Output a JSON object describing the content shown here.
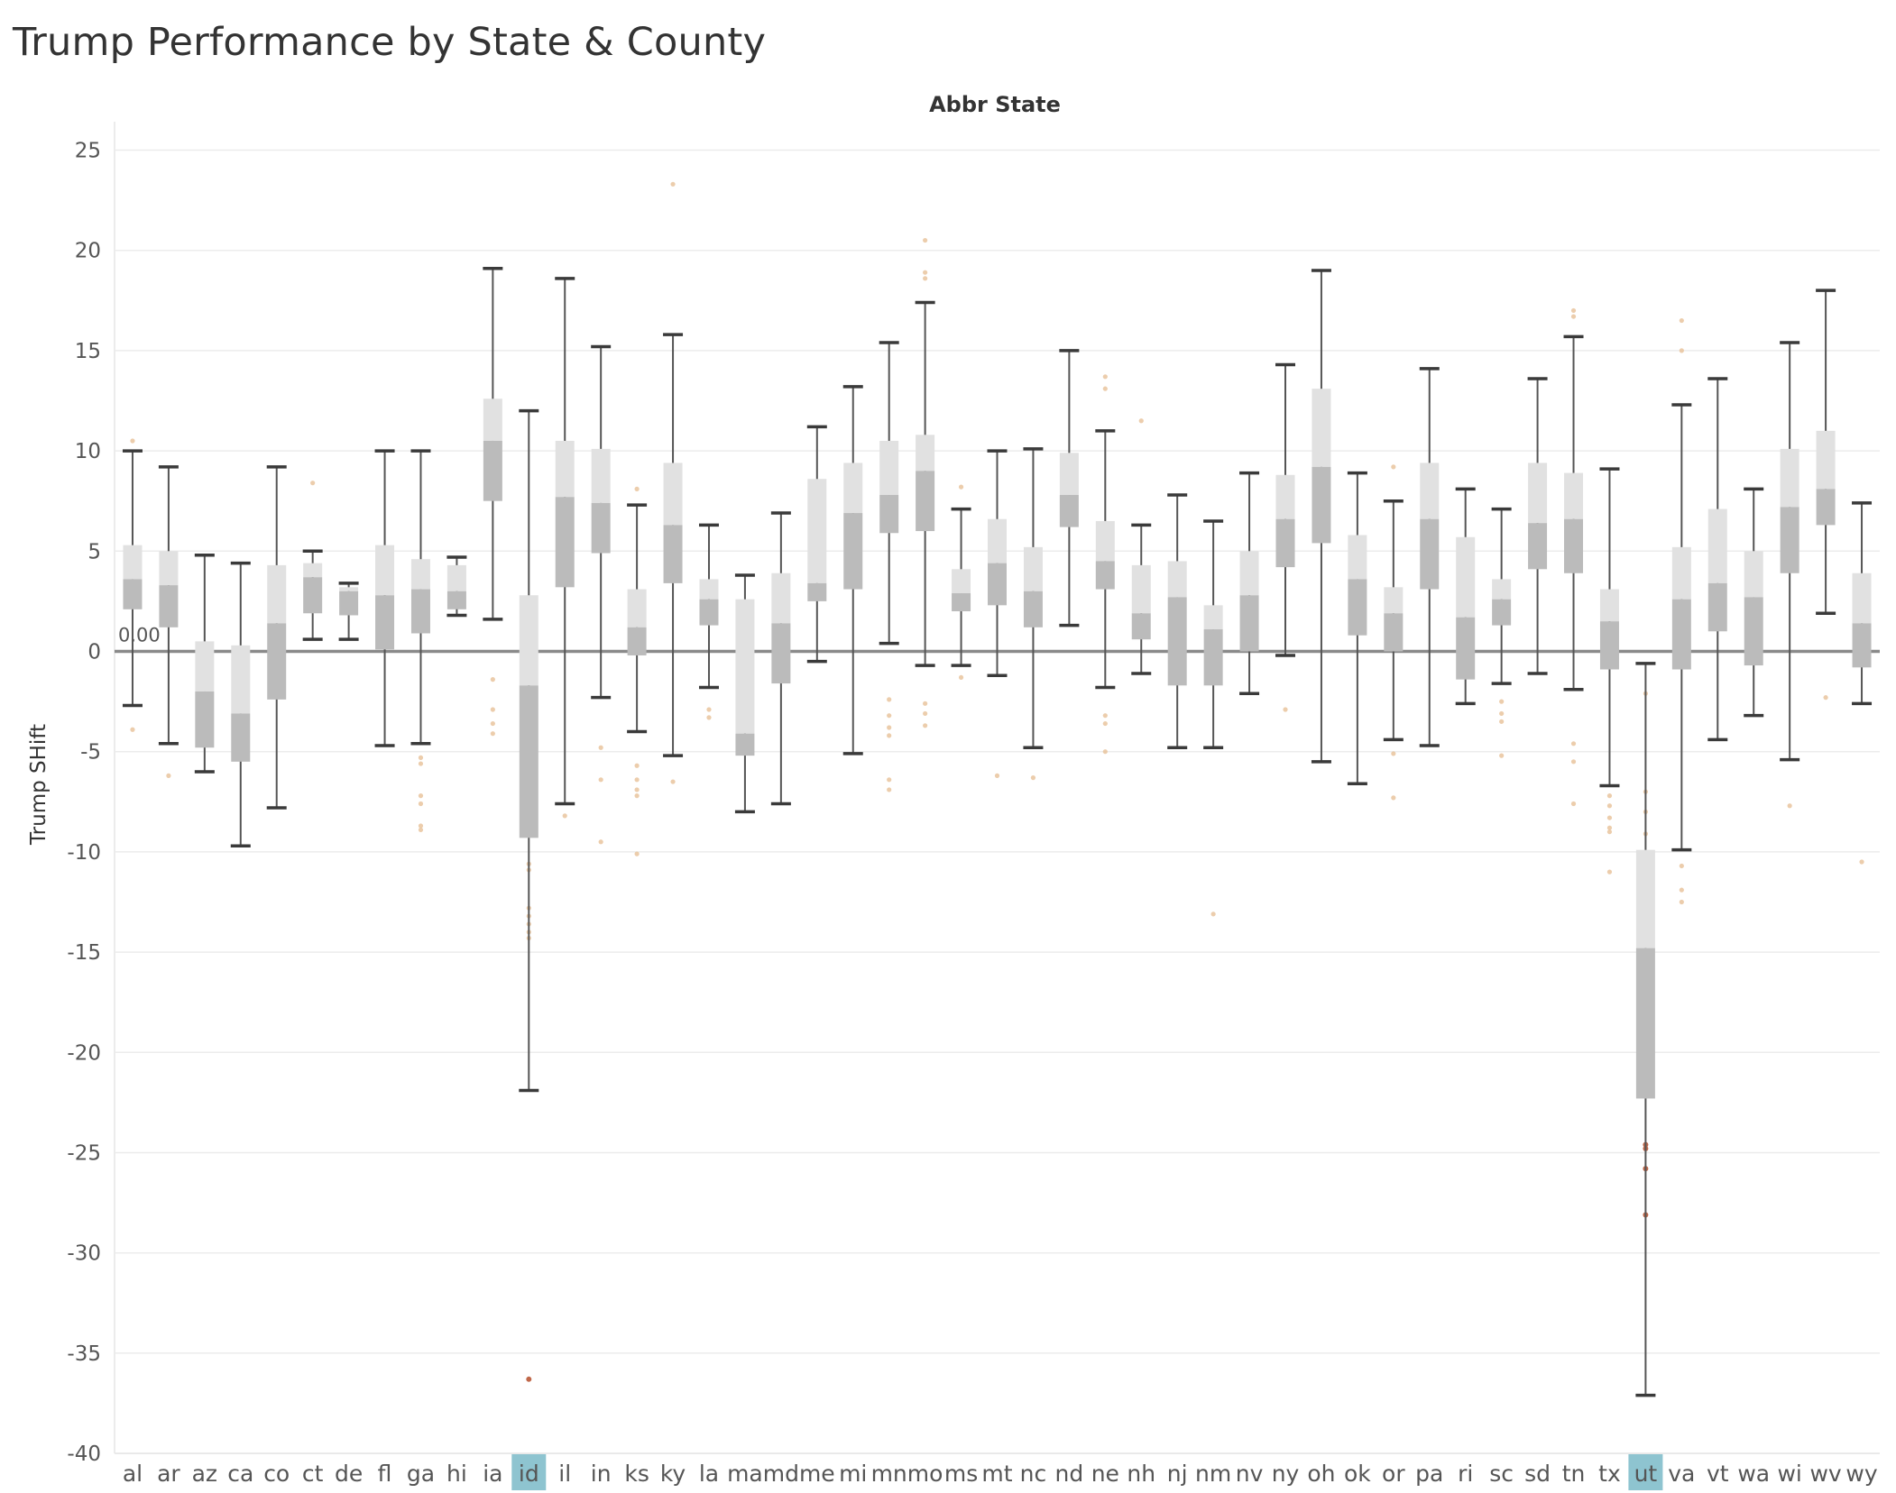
{
  "page": {
    "title": "Trump Performance by State & County"
  },
  "chart_data": {
    "type": "box",
    "title": "Trump Performance by State & County",
    "column_header": "Abbr State",
    "ylabel": "Trump SHift",
    "ylim": [
      -41,
      25
    ],
    "yticks": [
      25,
      20,
      15,
      10,
      5,
      0,
      -5,
      -10,
      -15,
      -20,
      -25,
      -30,
      -35,
      -40
    ],
    "reference_line": {
      "value": 0,
      "label": "0.00"
    },
    "highlighted": [
      "id",
      "ut"
    ],
    "colors": {
      "box_upper": "#e1e1e1",
      "box_lower": "#bbbbbb",
      "whisker": "#555555",
      "point": "#e9c49d",
      "point_dark": "#c0684a",
      "highlight": "#8ec4d0",
      "grid": "#ececec"
    },
    "states": [
      {
        "abbr": "al",
        "min": -2.7,
        "q1": 2.1,
        "median": 3.6,
        "q3": 5.3,
        "max": 10.0,
        "outliers": [
          10.5,
          -3.9
        ]
      },
      {
        "abbr": "ar",
        "min": -4.6,
        "q1": 1.2,
        "median": 3.3,
        "q3": 5.0,
        "max": 9.2,
        "outliers": [
          -6.2
        ]
      },
      {
        "abbr": "az",
        "min": -6.0,
        "q1": -4.8,
        "median": -2.0,
        "q3": 0.5,
        "max": 4.8,
        "outliers": []
      },
      {
        "abbr": "ca",
        "min": -9.7,
        "q1": -5.5,
        "median": -3.1,
        "q3": 0.3,
        "max": 4.4,
        "outliers": []
      },
      {
        "abbr": "co",
        "min": -7.8,
        "q1": -2.4,
        "median": 1.4,
        "q3": 4.3,
        "max": 9.2,
        "outliers": []
      },
      {
        "abbr": "ct",
        "min": 0.6,
        "q1": 1.9,
        "median": 3.7,
        "q3": 4.4,
        "max": 5.0,
        "outliers": [
          8.4
        ]
      },
      {
        "abbr": "de",
        "min": 0.6,
        "q1": 1.8,
        "median": 3.0,
        "q3": 3.2,
        "max": 3.4,
        "outliers": []
      },
      {
        "abbr": "fl",
        "min": -4.7,
        "q1": 0.1,
        "median": 2.8,
        "q3": 5.3,
        "max": 10.0,
        "outliers": []
      },
      {
        "abbr": "ga",
        "min": -4.6,
        "q1": 0.9,
        "median": 3.1,
        "q3": 4.6,
        "max": 10.0,
        "outliers": [
          -5.3,
          -5.6,
          -7.2,
          -7.6,
          -8.7,
          -8.9
        ]
      },
      {
        "abbr": "hi",
        "min": 1.8,
        "q1": 2.1,
        "median": 3.0,
        "q3": 4.3,
        "max": 4.7,
        "outliers": []
      },
      {
        "abbr": "ia",
        "min": 1.6,
        "q1": 7.5,
        "median": 10.5,
        "q3": 12.6,
        "max": 19.1,
        "outliers": [
          -1.4,
          -2.9,
          -3.6,
          -4.1
        ]
      },
      {
        "abbr": "id",
        "min": -21.9,
        "q1": -9.3,
        "median": -1.7,
        "q3": 2.8,
        "max": 12.0,
        "outliers": [
          -10.6,
          -10.9,
          -12.8,
          -13.2,
          -13.6,
          -14.0,
          -14.3
        ],
        "extreme_outliers": [
          -36.3
        ]
      },
      {
        "abbr": "il",
        "min": -7.6,
        "q1": 3.2,
        "median": 7.7,
        "q3": 10.5,
        "max": 18.6,
        "outliers": [
          -8.2
        ]
      },
      {
        "abbr": "in",
        "min": -2.3,
        "q1": 4.9,
        "median": 7.4,
        "q3": 10.1,
        "max": 15.2,
        "outliers": [
          -4.8,
          -6.4,
          -9.5
        ]
      },
      {
        "abbr": "ks",
        "min": -4.0,
        "q1": -0.2,
        "median": 1.2,
        "q3": 3.1,
        "max": 7.3,
        "outliers": [
          8.1,
          -5.7,
          -6.4,
          -6.9,
          -7.2,
          -10.1
        ]
      },
      {
        "abbr": "ky",
        "min": -5.2,
        "q1": 3.4,
        "median": 6.3,
        "q3": 9.4,
        "max": 15.8,
        "outliers": [
          23.3,
          -6.5
        ]
      },
      {
        "abbr": "la",
        "min": -1.8,
        "q1": 1.3,
        "median": 2.6,
        "q3": 3.6,
        "max": 6.3,
        "outliers": [
          -2.9,
          -3.3
        ]
      },
      {
        "abbr": "ma",
        "min": -8.0,
        "q1": -5.2,
        "median": -4.1,
        "q3": 2.6,
        "max": 3.8,
        "outliers": []
      },
      {
        "abbr": "md",
        "min": -7.6,
        "q1": -1.6,
        "median": 1.4,
        "q3": 3.9,
        "max": 6.9,
        "outliers": []
      },
      {
        "abbr": "me",
        "min": -0.5,
        "q1": 2.5,
        "median": 3.4,
        "q3": 8.6,
        "max": 11.2,
        "outliers": []
      },
      {
        "abbr": "mi",
        "min": -5.1,
        "q1": 3.1,
        "median": 6.9,
        "q3": 9.4,
        "max": 13.2,
        "outliers": []
      },
      {
        "abbr": "mn",
        "min": 0.4,
        "q1": 5.9,
        "median": 7.8,
        "q3": 10.5,
        "max": 15.4,
        "outliers": [
          -2.4,
          -3.2,
          -3.8,
          -4.2,
          -6.4,
          -6.9
        ]
      },
      {
        "abbr": "mo",
        "min": -0.7,
        "q1": 6.0,
        "median": 9.0,
        "q3": 10.8,
        "max": 17.4,
        "outliers": [
          18.6,
          18.9,
          20.5,
          -2.6,
          -3.1,
          -3.7
        ]
      },
      {
        "abbr": "ms",
        "min": -0.7,
        "q1": 2.0,
        "median": 2.9,
        "q3": 4.1,
        "max": 7.1,
        "outliers": [
          8.2,
          -1.3
        ]
      },
      {
        "abbr": "mt",
        "min": -1.2,
        "q1": 2.3,
        "median": 4.4,
        "q3": 6.6,
        "max": 10.0,
        "outliers": [
          -6.2
        ]
      },
      {
        "abbr": "nc",
        "min": -4.8,
        "q1": 1.2,
        "median": 3.0,
        "q3": 5.2,
        "max": 10.1,
        "outliers": [
          -6.3
        ]
      },
      {
        "abbr": "nd",
        "min": 1.3,
        "q1": 6.2,
        "median": 7.8,
        "q3": 9.9,
        "max": 15.0,
        "outliers": []
      },
      {
        "abbr": "ne",
        "min": -1.8,
        "q1": 3.1,
        "median": 4.5,
        "q3": 6.5,
        "max": 11.0,
        "outliers": [
          13.1,
          13.7,
          -3.2,
          -3.6,
          -5.0
        ]
      },
      {
        "abbr": "nh",
        "min": -1.1,
        "q1": 0.6,
        "median": 1.9,
        "q3": 4.3,
        "max": 6.3,
        "outliers": [
          11.5
        ]
      },
      {
        "abbr": "nj",
        "min": -4.8,
        "q1": -1.7,
        "median": 2.7,
        "q3": 4.5,
        "max": 7.8,
        "outliers": []
      },
      {
        "abbr": "nm",
        "min": -4.8,
        "q1": -1.7,
        "median": 1.1,
        "q3": 2.3,
        "max": 6.5,
        "outliers": [
          -13.1
        ]
      },
      {
        "abbr": "nv",
        "min": -2.1,
        "q1": 0.0,
        "median": 2.8,
        "q3": 5.0,
        "max": 8.9,
        "outliers": []
      },
      {
        "abbr": "ny",
        "min": -0.2,
        "q1": 4.2,
        "median": 6.6,
        "q3": 8.8,
        "max": 14.3,
        "outliers": [
          -2.9
        ]
      },
      {
        "abbr": "oh",
        "min": -5.5,
        "q1": 5.4,
        "median": 9.2,
        "q3": 13.1,
        "max": 19.0,
        "outliers": []
      },
      {
        "abbr": "ok",
        "min": -6.6,
        "q1": 0.8,
        "median": 3.6,
        "q3": 5.8,
        "max": 8.9,
        "outliers": []
      },
      {
        "abbr": "or",
        "min": -4.4,
        "q1": 0.0,
        "median": 1.9,
        "q3": 3.2,
        "max": 7.5,
        "outliers": [
          9.2,
          -5.1,
          -7.3
        ]
      },
      {
        "abbr": "pa",
        "min": -4.7,
        "q1": 3.1,
        "median": 6.6,
        "q3": 9.4,
        "max": 14.1,
        "outliers": []
      },
      {
        "abbr": "ri",
        "min": -2.6,
        "q1": -1.4,
        "median": 1.7,
        "q3": 5.7,
        "max": 8.1,
        "outliers": []
      },
      {
        "abbr": "sc",
        "min": -1.6,
        "q1": 1.3,
        "median": 2.6,
        "q3": 3.6,
        "max": 7.1,
        "outliers": [
          -2.5,
          -3.1,
          -3.5,
          -5.2
        ]
      },
      {
        "abbr": "sd",
        "min": -1.1,
        "q1": 4.1,
        "median": 6.4,
        "q3": 9.4,
        "max": 13.6,
        "outliers": []
      },
      {
        "abbr": "tn",
        "min": -1.9,
        "q1": 3.9,
        "median": 6.6,
        "q3": 8.9,
        "max": 15.7,
        "outliers": [
          16.7,
          17.0,
          -4.6,
          -5.5,
          -7.6
        ]
      },
      {
        "abbr": "tx",
        "min": -6.7,
        "q1": -0.9,
        "median": 1.5,
        "q3": 3.1,
        "max": 9.1,
        "outliers": [
          -7.2,
          -7.7,
          -8.3,
          -8.8,
          -9.0,
          -11.0
        ]
      },
      {
        "abbr": "ut",
        "min": -37.1,
        "q1": -22.3,
        "median": -14.8,
        "q3": -9.9,
        "max": -0.6,
        "outliers": [
          -2.1,
          -7.0,
          -8.0,
          -9.1,
          -10.3,
          -12.5,
          -13.3,
          -13.8,
          -14.5,
          -15.2,
          -19.2,
          -19.4
        ],
        "extreme_outliers": [
          -24.6,
          -24.8,
          -25.8,
          -28.1
        ]
      },
      {
        "abbr": "va",
        "min": -9.9,
        "q1": -0.9,
        "median": 2.6,
        "q3": 5.2,
        "max": 12.3,
        "outliers": [
          16.5,
          15.0,
          -10.7,
          -11.9,
          -12.5
        ]
      },
      {
        "abbr": "vt",
        "min": -4.4,
        "q1": 1.0,
        "median": 3.4,
        "q3": 7.1,
        "max": 13.6,
        "outliers": []
      },
      {
        "abbr": "wa",
        "min": -3.2,
        "q1": -0.7,
        "median": 2.7,
        "q3": 5.0,
        "max": 8.1,
        "outliers": []
      },
      {
        "abbr": "wi",
        "min": -5.4,
        "q1": 3.9,
        "median": 7.2,
        "q3": 10.1,
        "max": 15.4,
        "outliers": [
          -7.7
        ]
      },
      {
        "abbr": "wv",
        "min": 1.9,
        "q1": 6.3,
        "median": 8.1,
        "q3": 11.0,
        "max": 18.0,
        "outliers": [
          -2.3
        ]
      },
      {
        "abbr": "wy",
        "min": -2.6,
        "q1": -0.8,
        "median": 1.4,
        "q3": 3.9,
        "max": 7.4,
        "outliers": [
          -10.5
        ]
      }
    ]
  }
}
